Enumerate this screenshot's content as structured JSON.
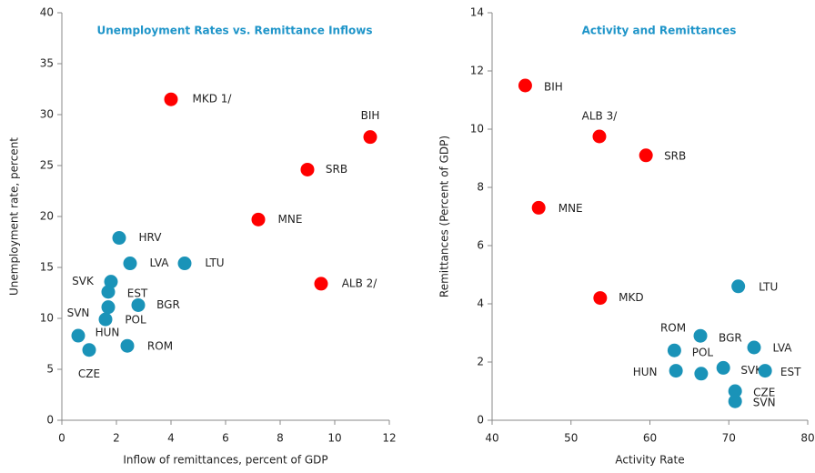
{
  "chart_data": [
    {
      "type": "scatter",
      "title": "Unemployment Rates vs. Remittance Inflows",
      "x_label": "Inflow of remittances, percent of GDP",
      "y_label": "Unemployment  rate, percent",
      "xlim": [
        0,
        12
      ],
      "ylim": [
        0,
        40
      ],
      "xticks": [
        0,
        2,
        4,
        6,
        8,
        10,
        12
      ],
      "yticks": [
        0,
        5,
        10,
        15,
        20,
        25,
        30,
        35,
        40
      ],
      "points": [
        {
          "label": "MKD 1/",
          "x": 4.0,
          "y": 31.5,
          "color": "#ff0000"
        },
        {
          "label": "BIH",
          "x": 11.3,
          "y": 27.8,
          "color": "#ff0000"
        },
        {
          "label": "SRB",
          "x": 9.0,
          "y": 24.6,
          "color": "#ff0000"
        },
        {
          "label": "MNE",
          "x": 7.2,
          "y": 19.7,
          "color": "#ff0000"
        },
        {
          "label": "ALB 2/",
          "x": 9.5,
          "y": 13.4,
          "color": "#ff0000"
        },
        {
          "label": "HRV",
          "x": 2.1,
          "y": 17.9,
          "color": "#1a93b8"
        },
        {
          "label": "LVA",
          "x": 2.5,
          "y": 15.4,
          "color": "#1a93b8"
        },
        {
          "label": "LTU",
          "x": 4.5,
          "y": 15.4,
          "color": "#1a93b8"
        },
        {
          "label": "SVK",
          "x": 1.8,
          "y": 13.6,
          "color": "#1a93b8"
        },
        {
          "label": "EST",
          "x": 1.7,
          "y": 12.6,
          "color": "#1a93b8"
        },
        {
          "label": "BGR",
          "x": 2.8,
          "y": 11.3,
          "color": "#1a93b8"
        },
        {
          "label": "SVN",
          "x": 1.7,
          "y": 11.1,
          "color": "#1a93b8"
        },
        {
          "label": "POL",
          "x": 1.6,
          "y": 9.9,
          "color": "#1a93b8"
        },
        {
          "label": "HUN",
          "x": 0.6,
          "y": 8.3,
          "color": "#1a93b8"
        },
        {
          "label": "CZE",
          "x": 1.0,
          "y": 6.9,
          "color": "#1a93b8"
        },
        {
          "label": "ROM",
          "x": 2.4,
          "y": 7.3,
          "color": "#1a93b8"
        }
      ]
    },
    {
      "type": "scatter",
      "title": "Activity and Remittances",
      "x_label": "Activity Rate",
      "y_label": "Remittances (Percent of GDP)",
      "xlim": [
        40,
        80
      ],
      "ylim": [
        0,
        14
      ],
      "xticks": [
        40,
        50,
        60,
        70,
        80
      ],
      "yticks": [
        0,
        2,
        4,
        6,
        8,
        10,
        12,
        14
      ],
      "points": [
        {
          "label": "BIH",
          "x": 44.2,
          "y": 11.5,
          "color": "#ff0000"
        },
        {
          "label": "ALB 3/",
          "x": 53.6,
          "y": 9.75,
          "color": "#ff0000"
        },
        {
          "label": "SRB",
          "x": 59.5,
          "y": 9.1,
          "color": "#ff0000"
        },
        {
          "label": "MNE",
          "x": 45.9,
          "y": 7.3,
          "color": "#ff0000"
        },
        {
          "label": "MKD",
          "x": 53.7,
          "y": 4.2,
          "color": "#ff0000"
        },
        {
          "label": "LTU",
          "x": 71.2,
          "y": 4.6,
          "color": "#1a93b8"
        },
        {
          "label": "ROM",
          "x": 66.4,
          "y": 2.9,
          "color": "#1a93b8"
        },
        {
          "label": "BGR",
          "x": 66.5,
          "y": 1.6,
          "color": "#1a93b8"
        },
        {
          "label": "LVA",
          "x": 73.2,
          "y": 2.5,
          "color": "#1a93b8"
        },
        {
          "label": "POL",
          "x": 63.1,
          "y": 2.4,
          "color": "#1a93b8"
        },
        {
          "label": "HUN",
          "x": 63.3,
          "y": 1.7,
          "color": "#1a93b8"
        },
        {
          "label": "SVK",
          "x": 69.3,
          "y": 1.8,
          "color": "#1a93b8"
        },
        {
          "label": "EST",
          "x": 74.6,
          "y": 1.7,
          "color": "#1a93b8"
        },
        {
          "label": "CZE",
          "x": 70.8,
          "y": 1.0,
          "color": "#1a93b8"
        },
        {
          "label": "SVN",
          "x": 70.8,
          "y": 0.65,
          "color": "#1a93b8"
        }
      ]
    }
  ]
}
